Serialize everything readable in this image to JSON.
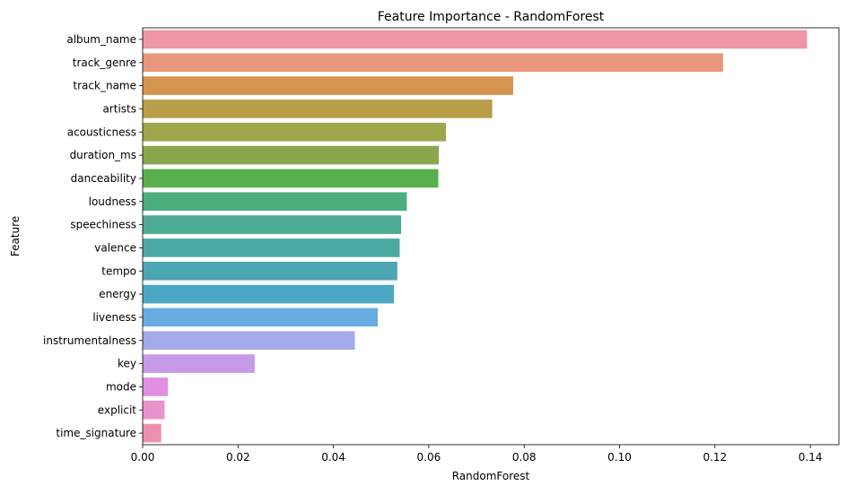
{
  "chart_data": {
    "type": "bar",
    "orientation": "horizontal",
    "title": "Feature Importance - RandomForest",
    "xlabel": "RandomForest",
    "ylabel": "Feature",
    "xlim": [
      0,
      0.146
    ],
    "xticks": [
      0.0,
      0.02,
      0.04,
      0.06,
      0.08,
      0.1,
      0.12,
      0.14
    ],
    "xtick_labels": [
      "0.00",
      "0.02",
      "0.04",
      "0.06",
      "0.08",
      "0.10",
      "0.12",
      "0.14"
    ],
    "grid": false,
    "legend": "none",
    "categories": [
      "album_name",
      "track_genre",
      "track_name",
      "artists",
      "acousticness",
      "duration_ms",
      "danceability",
      "loudness",
      "speechiness",
      "valence",
      "tempo",
      "energy",
      "liveness",
      "instrumentalness",
      "key",
      "mode",
      "explicit",
      "time_signature"
    ],
    "values": [
      0.1393,
      0.1217,
      0.0777,
      0.0733,
      0.0636,
      0.0621,
      0.062,
      0.0554,
      0.0542,
      0.0539,
      0.0534,
      0.0527,
      0.0493,
      0.0445,
      0.0235,
      0.0053,
      0.0046,
      0.0039
    ],
    "colors": [
      "#ee96a5",
      "#e8967c",
      "#d5944f",
      "#b89e49",
      "#9fa54a",
      "#8ba74b",
      "#58b04d",
      "#4cae7c",
      "#4cab92",
      "#4ba9a4",
      "#4ca6b3",
      "#4ba8c4",
      "#67abe2",
      "#a4a9ea",
      "#c79aea",
      "#e08fe3",
      "#ea92cb",
      "#ec90b0"
    ]
  }
}
